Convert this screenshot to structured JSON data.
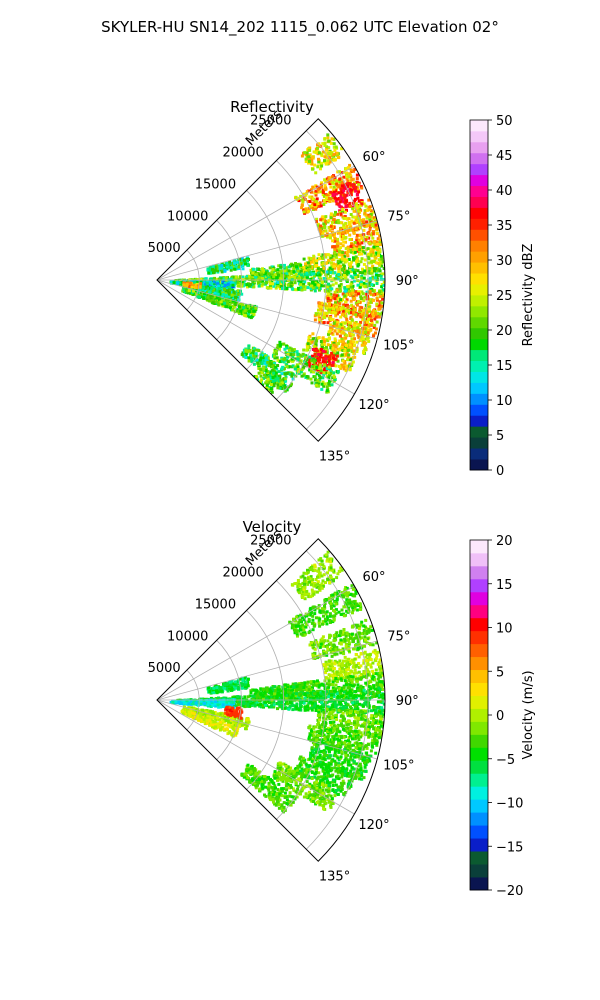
{
  "suptitle": "SKYLER-HU  SN14_202  1115_0.062 UTC Elevation 02°",
  "chart_data": [
    {
      "type": "heatmap",
      "title": "Reflectivity",
      "projection": "polar-sector",
      "range_label": "Meters",
      "range_ticks": [
        "5000",
        "10000",
        "15000",
        "20000",
        "25000"
      ],
      "range_tick_values": [
        5000,
        10000,
        15000,
        20000,
        25000
      ],
      "range_max": 27000,
      "angle_range_deg": [
        45,
        135
      ],
      "angle_ticks": [
        "60°",
        "75°",
        "90°",
        "105°",
        "120°",
        "135°"
      ],
      "angle_tick_values": [
        60,
        75,
        90,
        105,
        120,
        135
      ],
      "grid": true,
      "colorbar": {
        "label": "Reflectivity dBZ",
        "vmin": 0,
        "vmax": 50,
        "ticks": [
          "0",
          "5",
          "10",
          "15",
          "20",
          "25",
          "30",
          "35",
          "40",
          "45",
          "50"
        ],
        "tick_values": [
          0,
          5,
          10,
          15,
          20,
          25,
          30,
          35,
          40,
          45,
          50
        ],
        "colors": [
          "#0a1550",
          "#0a2c7a",
          "#0a3f3a",
          "#0b5a30",
          "#0a1ec8",
          "#0050ff",
          "#0090ff",
          "#00c8ff",
          "#00e6e6",
          "#00f0b0",
          "#00e878",
          "#00d800",
          "#30c800",
          "#60d800",
          "#90e800",
          "#c0f000",
          "#e8f000",
          "#ffe000",
          "#ffc000",
          "#ffa000",
          "#ff8000",
          "#ff5000",
          "#ff2000",
          "#ff0000",
          "#ff0050",
          "#ff0090",
          "#e000e0",
          "#b040ff",
          "#d070f0",
          "#e8a0f0",
          "#f4c8f8",
          "#fce8fc"
        ]
      },
      "echo_cells": [
        {
          "az": 52,
          "r0": 22500,
          "r1": 26800,
          "v": 26,
          "spread": 6
        },
        {
          "az": 62,
          "r0": 19000,
          "r1": 26800,
          "v": 30,
          "spread": 7
        },
        {
          "az": 66,
          "r0": 23000,
          "r1": 26000,
          "v": 37,
          "spread": 2
        },
        {
          "az": 72,
          "r0": 20000,
          "r1": 26800,
          "v": 28,
          "spread": 7
        },
        {
          "az": 78,
          "r0": 21000,
          "r1": 26800,
          "v": 29,
          "spread": 6
        },
        {
          "az": 84,
          "r0": 17000,
          "r1": 26800,
          "v": 24,
          "spread": 6
        },
        {
          "az": 90,
          "r0": 2000,
          "r1": 26800,
          "v": 20,
          "spread": 6
        },
        {
          "az": 96,
          "r0": 20000,
          "r1": 26800,
          "v": 28,
          "spread": 8
        },
        {
          "az": 101,
          "r0": 19000,
          "r1": 26500,
          "v": 29,
          "spread": 7
        },
        {
          "az": 106,
          "r0": 21000,
          "r1": 26000,
          "v": 27,
          "spread": 6
        },
        {
          "az": 112,
          "r0": 19000,
          "r1": 25000,
          "v": 25,
          "spread": 6
        },
        {
          "az": 116,
          "r0": 20000,
          "r1": 23000,
          "v": 36,
          "spread": 2
        },
        {
          "az": 120,
          "r0": 16000,
          "r1": 24000,
          "v": 20,
          "spread": 5
        },
        {
          "az": 128,
          "r0": 13000,
          "r1": 20000,
          "v": 18,
          "spread": 5
        },
        {
          "az": 132,
          "r0": 16000,
          "r1": 19000,
          "v": 20,
          "spread": 5
        },
        {
          "az": 78,
          "r0": 6000,
          "r1": 11000,
          "v": 17,
          "spread": 5
        },
        {
          "az": 94,
          "r0": 1500,
          "r1": 9000,
          "v": 14,
          "spread": 5
        },
        {
          "az": 100,
          "r0": 3000,
          "r1": 10000,
          "v": 18,
          "spread": 5
        },
        {
          "az": 108,
          "r0": 3000,
          "r1": 12000,
          "v": 20,
          "spread": 4
        },
        {
          "az": 96,
          "r0": 3000,
          "r1": 5000,
          "v": 30,
          "spread": 4
        },
        {
          "az": 86,
          "r0": 11000,
          "r1": 17000,
          "v": 20,
          "spread": 5
        }
      ]
    },
    {
      "type": "heatmap",
      "title": "Velocity",
      "projection": "polar-sector",
      "range_label": "Meters",
      "range_ticks": [
        "5000",
        "10000",
        "15000",
        "20000",
        "25000"
      ],
      "range_tick_values": [
        5000,
        10000,
        15000,
        20000,
        25000
      ],
      "range_max": 27000,
      "angle_range_deg": [
        45,
        135
      ],
      "angle_ticks": [
        "60°",
        "75°",
        "90°",
        "105°",
        "120°",
        "135°"
      ],
      "angle_tick_values": [
        60,
        75,
        90,
        105,
        120,
        135
      ],
      "grid": true,
      "colorbar": {
        "label": "Velocity (m/s)",
        "vmin": -20,
        "vmax": 20,
        "ticks": [
          "−20",
          "−15",
          "−10",
          "−5",
          "0",
          "5",
          "10",
          "15",
          "20"
        ],
        "tick_values": [
          -20,
          -15,
          -10,
          -5,
          0,
          5,
          10,
          15,
          20
        ],
        "colors": [
          "#0a1550",
          "#0a3f3a",
          "#0b5a30",
          "#0a1ec8",
          "#0050ff",
          "#0090ff",
          "#00c8ff",
          "#00f0e0",
          "#00f090",
          "#00e040",
          "#00e000",
          "#40d800",
          "#80e800",
          "#b0f000",
          "#e0f000",
          "#ffe000",
          "#ffc000",
          "#ff9000",
          "#ff6000",
          "#ff3000",
          "#ff0000",
          "#ff0080",
          "#e000e0",
          "#b040ff",
          "#d080f0",
          "#f0c0f8",
          "#fce8fc"
        ]
      },
      "echo_cells": [
        {
          "az": 52,
          "r0": 21000,
          "r1": 26800,
          "v": -1,
          "spread": 2
        },
        {
          "az": 62,
          "r0": 18000,
          "r1": 26800,
          "v": -3,
          "spread": 2
        },
        {
          "az": 72,
          "r0": 19000,
          "r1": 26800,
          "v": -2,
          "spread": 2
        },
        {
          "az": 80,
          "r0": 20000,
          "r1": 26800,
          "v": 0,
          "spread": 2
        },
        {
          "az": 86,
          "r0": 15000,
          "r1": 26800,
          "v": -3,
          "spread": 2
        },
        {
          "az": 90,
          "r0": 2000,
          "r1": 26800,
          "v": -5,
          "spread": 2
        },
        {
          "az": 96,
          "r0": 19000,
          "r1": 26800,
          "v": -2,
          "spread": 2
        },
        {
          "az": 102,
          "r0": 18000,
          "r1": 26500,
          "v": -3,
          "spread": 2
        },
        {
          "az": 108,
          "r0": 19000,
          "r1": 26000,
          "v": -4,
          "spread": 2
        },
        {
          "az": 114,
          "r0": 18000,
          "r1": 25000,
          "v": -4,
          "spread": 2
        },
        {
          "az": 120,
          "r0": 16000,
          "r1": 24000,
          "v": -2,
          "spread": 2
        },
        {
          "az": 128,
          "r0": 13000,
          "r1": 20000,
          "v": -3,
          "spread": 2
        },
        {
          "az": 78,
          "r0": 6000,
          "r1": 11000,
          "v": -6,
          "spread": 2
        },
        {
          "az": 92,
          "r0": 1500,
          "r1": 9000,
          "v": -9,
          "spread": 2
        },
        {
          "az": 104,
          "r0": 3000,
          "r1": 11000,
          "v": 0,
          "spread": 2
        },
        {
          "az": 112,
          "r0": 3000,
          "r1": 10000,
          "v": 1,
          "spread": 2
        },
        {
          "az": 98,
          "r0": 8000,
          "r1": 10000,
          "v": 9,
          "spread": 1
        },
        {
          "az": 86,
          "r0": 11000,
          "r1": 17000,
          "v": -4,
          "spread": 2
        }
      ]
    }
  ]
}
